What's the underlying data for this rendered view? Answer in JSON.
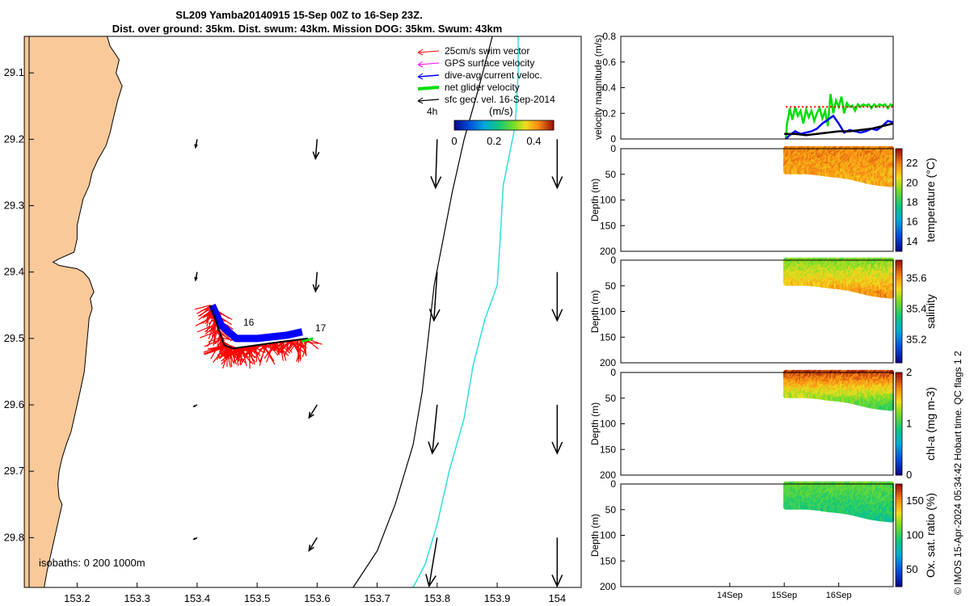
{
  "title": {
    "line1": "SL209 Yamba20140915 15-Sep 00Z to 16-Sep 23Z.",
    "line2": "Dist. over ground: 35km. Dist. swum: 43km. Mission DOG: 35km. Swum: 43km"
  },
  "credit": "© IMOS 15-Apr-2024 05:34:42 Hobart time. QC flags 1  2",
  "colors": {
    "land": "#f9c99a",
    "swim_vector": "#ff0000",
    "gps_velocity": "#ff00ff",
    "dive_avg": "#0000ff",
    "net_velocity": "#00dd00",
    "geo_velocity": "#000000",
    "isobath_200": "#000000",
    "isobath_1000": "#33dddd"
  },
  "chart_data": [
    {
      "type": "map",
      "title": "",
      "x_ticks": [
        "153.2",
        "153.3",
        "153.4",
        "153.5",
        "153.6",
        "153.7",
        "153.8",
        "153.9",
        "154"
      ],
      "y_ticks": [
        "29.1",
        "29.2",
        "29.3",
        "29.4",
        "29.5",
        "29.6",
        "29.7",
        "29.8"
      ],
      "xlim": [
        153.12,
        154.04
      ],
      "ylim": [
        -29.875,
        -29.045
      ],
      "legend": {
        "placement": "top-right",
        "entries": [
          "25cm/s swim vector",
          "GPS surface velocity",
          "dive-avg current veloc.",
          "net glider velocity",
          "sfc geo. vel. 16-Sep-2014"
        ]
      },
      "colorbar": {
        "label": "(m/s)",
        "ticks": [
          "0",
          "0.2",
          "0.4"
        ],
        "range": [
          0,
          0.5
        ]
      },
      "isobaths_label": "isobaths: 0   200  1000m",
      "track_labels": [
        "4h",
        "16",
        "17"
      ],
      "coastline": [
        [
          153.112,
          -29.045
        ],
        [
          153.25,
          -29.045
        ],
        [
          153.255,
          -29.06
        ],
        [
          153.27,
          -29.08
        ],
        [
          153.265,
          -29.1
        ],
        [
          153.275,
          -29.12
        ],
        [
          153.268,
          -29.14
        ],
        [
          153.26,
          -29.17
        ],
        [
          153.255,
          -29.19
        ],
        [
          153.248,
          -29.21
        ],
        [
          153.235,
          -29.23
        ],
        [
          153.225,
          -29.25
        ],
        [
          153.22,
          -29.27
        ],
        [
          153.21,
          -29.29
        ],
        [
          153.205,
          -29.31
        ],
        [
          153.2,
          -29.33
        ],
        [
          153.2,
          -29.35
        ],
        [
          153.195,
          -29.37
        ],
        [
          153.17,
          -29.38
        ],
        [
          153.16,
          -29.385
        ],
        [
          153.17,
          -29.39
        ],
        [
          153.2,
          -29.395
        ],
        [
          153.21,
          -29.4
        ],
        [
          153.22,
          -29.41
        ],
        [
          153.228,
          -29.43
        ],
        [
          153.222,
          -29.44
        ],
        [
          153.225,
          -29.455
        ],
        [
          153.22,
          -29.47
        ],
        [
          153.218,
          -29.49
        ],
        [
          153.215,
          -29.52
        ],
        [
          153.212,
          -29.55
        ],
        [
          153.205,
          -29.58
        ],
        [
          153.2,
          -29.6
        ],
        [
          153.195,
          -29.62
        ],
        [
          153.19,
          -29.64
        ],
        [
          153.182,
          -29.66
        ],
        [
          153.175,
          -29.68
        ],
        [
          153.17,
          -29.7
        ],
        [
          153.168,
          -29.72
        ],
        [
          153.17,
          -29.74
        ],
        [
          153.175,
          -29.75
        ],
        [
          153.17,
          -29.77
        ],
        [
          153.165,
          -29.79
        ],
        [
          153.16,
          -29.81
        ],
        [
          153.155,
          -29.83
        ],
        [
          153.15,
          -29.85
        ],
        [
          153.145,
          -29.875
        ],
        [
          153.112,
          -29.875
        ]
      ],
      "isobath_200": [
        [
          153.892,
          -29.045
        ],
        [
          153.87,
          -29.12
        ],
        [
          153.845,
          -29.2
        ],
        [
          153.825,
          -29.28
        ],
        [
          153.81,
          -29.35
        ],
        [
          153.795,
          -29.42
        ],
        [
          153.785,
          -29.5
        ],
        [
          153.775,
          -29.58
        ],
        [
          153.76,
          -29.66
        ],
        [
          153.73,
          -29.75
        ],
        [
          153.7,
          -29.82
        ],
        [
          153.66,
          -29.875
        ]
      ],
      "isobath_1000": [
        [
          153.935,
          -29.045
        ],
        [
          153.935,
          -29.1
        ],
        [
          153.93,
          -29.18
        ],
        [
          153.91,
          -29.27
        ],
        [
          153.905,
          -29.35
        ],
        [
          153.9,
          -29.42
        ],
        [
          153.88,
          -29.47
        ],
        [
          153.86,
          -29.54
        ],
        [
          153.845,
          -29.62
        ],
        [
          153.82,
          -29.7
        ],
        [
          153.8,
          -29.78
        ],
        [
          153.78,
          -29.84
        ],
        [
          153.76,
          -29.875
        ]
      ],
      "glider_track": [
        [
          153.422,
          -29.45
        ],
        [
          153.43,
          -29.47
        ],
        [
          153.445,
          -29.51
        ],
        [
          153.46,
          -29.515
        ],
        [
          153.5,
          -29.51
        ],
        [
          153.54,
          -29.505
        ],
        [
          153.585,
          -29.5
        ]
      ],
      "dive_avg_track": [
        [
          153.425,
          -29.45
        ],
        [
          153.44,
          -29.48
        ],
        [
          153.465,
          -29.5
        ],
        [
          153.5,
          -29.5
        ],
        [
          153.55,
          -29.495
        ],
        [
          153.575,
          -29.49
        ]
      ],
      "geo_velocity_arrows": [
        {
          "lon": 153.4,
          "lat": -29.2,
          "u": -0.01,
          "v": -0.05
        },
        {
          "lon": 153.6,
          "lat": -29.2,
          "u": -0.01,
          "v": -0.12
        },
        {
          "lon": 153.8,
          "lat": -29.2,
          "u": -0.01,
          "v": -0.3
        },
        {
          "lon": 154.0,
          "lat": -29.2,
          "u": 0.0,
          "v": -0.3
        },
        {
          "lon": 153.4,
          "lat": -29.4,
          "u": -0.01,
          "v": -0.05
        },
        {
          "lon": 153.6,
          "lat": -29.4,
          "u": -0.01,
          "v": -0.12
        },
        {
          "lon": 153.8,
          "lat": -29.4,
          "u": -0.02,
          "v": -0.3
        },
        {
          "lon": 154.0,
          "lat": -29.4,
          "u": 0.0,
          "v": -0.3
        },
        {
          "lon": 153.4,
          "lat": -29.6,
          "u": -0.02,
          "v": -0.01
        },
        {
          "lon": 153.6,
          "lat": -29.6,
          "u": -0.05,
          "v": -0.08
        },
        {
          "lon": 153.8,
          "lat": -29.6,
          "u": -0.03,
          "v": -0.3
        },
        {
          "lon": 154.0,
          "lat": -29.6,
          "u": 0.0,
          "v": -0.3
        },
        {
          "lon": 153.4,
          "lat": -29.8,
          "u": -0.02,
          "v": -0.01
        },
        {
          "lon": 153.6,
          "lat": -29.8,
          "u": -0.05,
          "v": -0.08
        },
        {
          "lon": 153.8,
          "lat": -29.8,
          "u": -0.05,
          "v": -0.3
        },
        {
          "lon": 154.0,
          "lat": -29.8,
          "u": 0.0,
          "v": -0.3
        }
      ]
    },
    {
      "type": "line",
      "title": "",
      "ylabel": "velocity magnitude (m/s)",
      "y_ticks": [
        "0",
        "0.2",
        "0.4",
        "0.6",
        "0.8"
      ],
      "ylim": [
        0,
        0.8
      ],
      "xlim": [
        0,
        5
      ],
      "series": [
        {
          "color": "#00dd00",
          "x": [
            3.03,
            3.05,
            3.08,
            3.1,
            3.15,
            3.2,
            3.25,
            3.3,
            3.35,
            3.4,
            3.45,
            3.5,
            3.55,
            3.6,
            3.65,
            3.7,
            3.75,
            3.8,
            3.85,
            3.9,
            3.95,
            4.0,
            4.05,
            4.1,
            4.15,
            4.2,
            4.25,
            4.3,
            4.35,
            4.4,
            4.45,
            4.5,
            4.55,
            4.6,
            4.65,
            4.7,
            4.75,
            4.8,
            4.85,
            4.9,
            4.95,
            5.0
          ],
          "values": [
            0.0,
            0.12,
            0.18,
            0.24,
            0.15,
            0.25,
            0.18,
            0.22,
            0.12,
            0.23,
            0.17,
            0.22,
            0.14,
            0.2,
            0.24,
            0.16,
            0.22,
            0.1,
            0.35,
            0.2,
            0.3,
            0.25,
            0.33,
            0.2,
            0.28,
            0.25,
            0.26,
            0.22,
            0.27,
            0.25,
            0.27,
            0.26,
            0.27,
            0.24,
            0.27,
            0.25,
            0.27,
            0.26,
            0.27,
            0.24,
            0.27,
            0.26
          ]
        },
        {
          "color": "#0000ff",
          "x": [
            3.03,
            3.1,
            3.2,
            3.3,
            3.4,
            3.5,
            3.6,
            3.7,
            3.8,
            3.9,
            4.0,
            4.1,
            4.2,
            4.3,
            4.4,
            4.5,
            4.6,
            4.7,
            4.8,
            4.9,
            5.0
          ],
          "values": [
            0.0,
            0.03,
            0.06,
            0.04,
            0.05,
            0.06,
            0.08,
            0.12,
            0.15,
            0.18,
            0.12,
            0.05,
            0.07,
            0.06,
            0.05,
            0.06,
            0.08,
            0.07,
            0.1,
            0.14,
            0.13
          ]
        },
        {
          "color": "#000000",
          "x": [
            3.0,
            3.2,
            3.4,
            3.6,
            3.8,
            4.0,
            4.2,
            4.4,
            4.6,
            4.8,
            5.0
          ],
          "values": [
            0.04,
            0.04,
            0.03,
            0.04,
            0.05,
            0.06,
            0.06,
            0.07,
            0.08,
            0.1,
            0.12
          ]
        },
        {
          "color": "#ff0000",
          "x": [
            3.03,
            5.0
          ],
          "values": [
            0.25,
            0.25
          ]
        }
      ]
    },
    {
      "type": "heatmap",
      "title": "",
      "ylabel": "Depth (m)",
      "y_ticks": [
        "0",
        "50",
        "100",
        "150",
        "200"
      ],
      "ylim": [
        200,
        0
      ],
      "colorbar_label": "temperature (°C)",
      "colorbar_ticks": [
        "14",
        "16",
        "18",
        "20",
        "22"
      ],
      "clim": [
        13.0,
        23.5
      ],
      "bottom_depth": [
        45,
        45,
        45,
        47,
        50,
        52,
        55,
        60,
        65,
        68,
        70
      ],
      "values": [
        22.0,
        21.3
      ]
    },
    {
      "type": "heatmap",
      "title": "",
      "ylabel": "Depth (m)",
      "y_ticks": [
        "0",
        "50",
        "100",
        "150",
        "200"
      ],
      "ylim": [
        200,
        0
      ],
      "colorbar_label": "salinity",
      "colorbar_ticks": [
        "35.2",
        "35.4",
        "35.6"
      ],
      "clim": [
        35.05,
        35.72
      ],
      "bottom_depth": [
        45,
        45,
        45,
        47,
        50,
        52,
        55,
        60,
        65,
        68,
        70
      ],
      "values": [
        35.45,
        35.62
      ]
    },
    {
      "type": "heatmap",
      "title": "",
      "ylabel": "Depth (m)",
      "y_ticks": [
        "0",
        "50",
        "100",
        "150",
        "200"
      ],
      "ylim": [
        200,
        0
      ],
      "colorbar_label": "chl-a (mg m-3)",
      "colorbar_ticks": [
        "0",
        "1",
        "2"
      ],
      "clim": [
        0,
        2
      ],
      "bottom_depth": [
        45,
        45,
        45,
        47,
        50,
        52,
        55,
        60,
        65,
        68,
        70
      ],
      "values": [
        1.9,
        1.0
      ]
    },
    {
      "type": "heatmap",
      "title": "",
      "ylabel": "Depth (m)",
      "y_ticks": [
        "0",
        "50",
        "100",
        "150",
        "200"
      ],
      "ylim": [
        200,
        0
      ],
      "x_ticks": [
        "14Sep",
        "15Sep",
        "16Sep"
      ],
      "colorbar_label": "Ox. sat. ratio (%)",
      "colorbar_ticks": [
        "50",
        "100",
        "150"
      ],
      "clim": [
        25,
        175
      ],
      "bottom_depth": [
        45,
        45,
        45,
        47,
        50,
        52,
        55,
        60,
        65,
        68,
        70
      ],
      "values": [
        110,
        90
      ]
    }
  ]
}
